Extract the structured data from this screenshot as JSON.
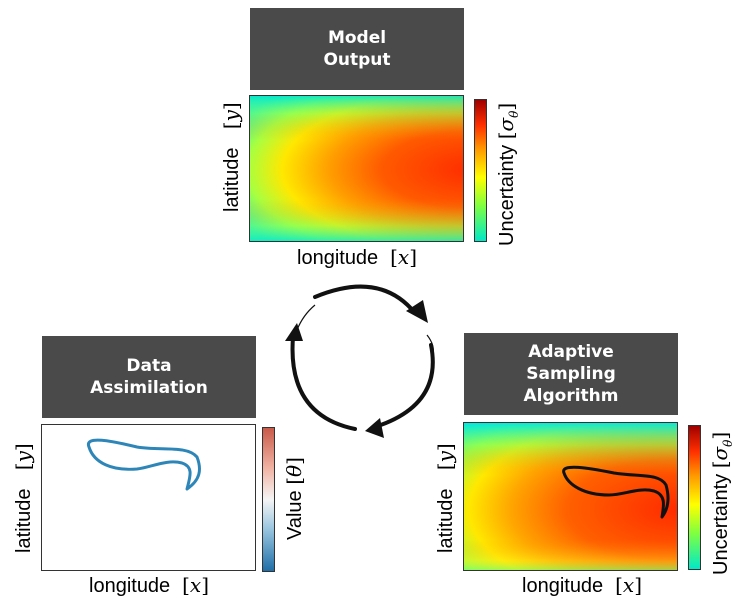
{
  "model_output": {
    "title_line1": "Model",
    "title_line2": "Output",
    "xlabel_text": "longitude",
    "xlabel_var": "x",
    "ylabel_text": "latitude",
    "ylabel_var": "y",
    "colorbar_text": "Uncertainty",
    "colorbar_var": "σ",
    "colorbar_sub": "θ",
    "colormap": [
      "#00e6c8",
      "#7fff3a",
      "#ffff00",
      "#ff9a00",
      "#ff3000",
      "#a00000"
    ]
  },
  "data_assimilation": {
    "title_line1": "Data",
    "title_line2": "Assimilation",
    "xlabel_text": "longitude",
    "xlabel_var": "x",
    "ylabel_text": "latitude",
    "ylabel_var": "y",
    "colorbar_text": "Value",
    "colorbar_var": "θ",
    "colormap": [
      "#1f6fa8",
      "#9cc7e0",
      "#f5f5f5",
      "#f0b3a3",
      "#c85a4a"
    ],
    "trajectory_color": "#2e86b8"
  },
  "adaptive_sampling": {
    "title_line1": "Adaptive",
    "title_line2": "Sampling",
    "title_line3": "Algorithm",
    "xlabel_text": "longitude",
    "xlabel_var": "x",
    "ylabel_text": "latitude",
    "ylabel_var": "y",
    "colorbar_text": "Uncertainty",
    "colorbar_var": "σ",
    "colorbar_sub": "θ",
    "trajectory_color": "#111111"
  },
  "cycle": {
    "arrow_color": "#111111"
  }
}
